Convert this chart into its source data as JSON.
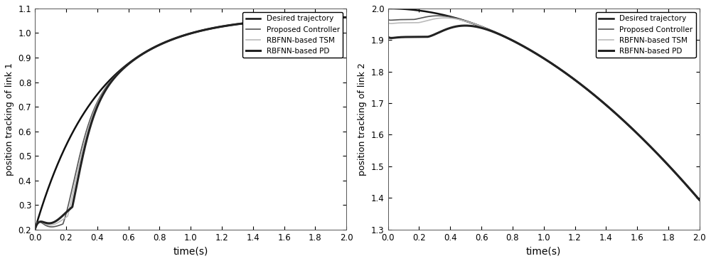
{
  "plot1": {
    "ylabel": "position tracking of link 1",
    "xlabel": "time(s)",
    "xlim": [
      0,
      2
    ],
    "ylim": [
      0.2,
      1.1
    ],
    "yticks": [
      0.2,
      0.3,
      0.4,
      0.5,
      0.6,
      0.7,
      0.8,
      0.9,
      1.0,
      1.1
    ],
    "xticks": [
      0,
      0.2,
      0.4,
      0.6,
      0.8,
      1.0,
      1.2,
      1.4,
      1.6,
      1.8,
      2.0
    ]
  },
  "plot2": {
    "ylabel": "position tracking of link 2",
    "xlabel": "time(s)",
    "xlim": [
      0,
      2
    ],
    "ylim": [
      1.3,
      2.0
    ],
    "yticks": [
      1.3,
      1.4,
      1.5,
      1.6,
      1.7,
      1.8,
      1.9,
      2.0
    ],
    "xticks": [
      0,
      0.2,
      0.4,
      0.6,
      0.8,
      1.0,
      1.2,
      1.4,
      1.6,
      1.8,
      2.0
    ]
  },
  "legend_labels": [
    "Desired trajectory",
    "Proposed Controller",
    "RBFNN-based TSM",
    "RBFNN-based PD"
  ],
  "colors": {
    "desired": "#111111",
    "proposed": "#555555",
    "tsm": "#bbbbbb",
    "pd": "#222222"
  },
  "linewidths": {
    "desired": 1.8,
    "proposed": 1.2,
    "tsm": 1.2,
    "pd": 2.2
  },
  "background_color": "#ffffff"
}
